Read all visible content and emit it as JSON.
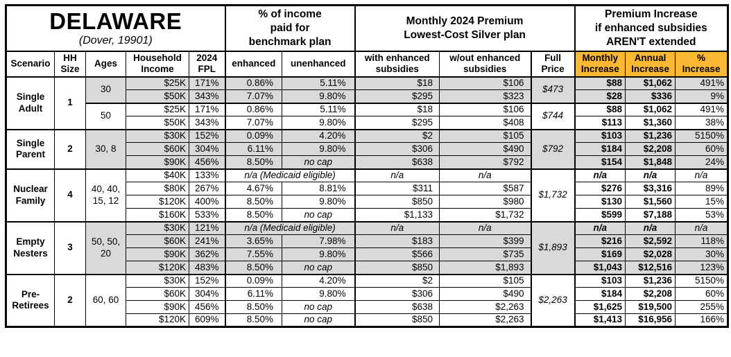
{
  "title_block": {
    "state": "DELAWARE",
    "location": "(Dover, 19901)"
  },
  "section_headers": {
    "benchmark": "% of income\npaid for\nbenchmark plan",
    "premium": "Monthly 2024 Premium\nLowest-Cost Silver plan",
    "increase": "Premium Increase\nif enhanced subsidies\nAREN'T extended"
  },
  "column_headers": [
    "Scenario",
    "HH\nSize",
    "Ages",
    "Household\nIncome",
    "2024\nFPL",
    "enhanced",
    "unenhanced",
    "with enhanced\nsubsidies",
    "w/out enhanced\nsubsidies",
    "Full\nPrice",
    "Monthly\nIncrease",
    "Annual\nIncrease",
    "%\nIncrease"
  ],
  "colors": {
    "gold": "#fbb832",
    "shade": "#d9d9d9",
    "border": "#000000"
  },
  "groups": [
    {
      "scenario": "Single Adult",
      "hh_size": "1",
      "subgroups": [
        {
          "ages": "30",
          "shaded": true,
          "full_price": "$473",
          "rows": [
            {
              "income": "$25K",
              "fpl": "171%",
              "enhanced": "0.86%",
              "unenhanced": "5.11%",
              "with_sub": "$18",
              "without_sub": "$106",
              "monthly": "$88",
              "annual": "$1,062",
              "pct": "491%"
            },
            {
              "income": "$50K",
              "fpl": "343%",
              "enhanced": "7.07%",
              "unenhanced": "9.80%",
              "with_sub": "$295",
              "without_sub": "$323",
              "monthly": "$28",
              "annual": "$336",
              "pct": "9%"
            }
          ]
        },
        {
          "ages": "50",
          "shaded": false,
          "full_price": "$744",
          "rows": [
            {
              "income": "$25K",
              "fpl": "171%",
              "enhanced": "0.86%",
              "unenhanced": "5.11%",
              "with_sub": "$18",
              "without_sub": "$106",
              "monthly": "$88",
              "annual": "$1,062",
              "pct": "491%"
            },
            {
              "income": "$50K",
              "fpl": "343%",
              "enhanced": "7.07%",
              "unenhanced": "9.80%",
              "with_sub": "$295",
              "without_sub": "$408",
              "monthly": "$113",
              "annual": "$1,360",
              "pct": "38%"
            }
          ]
        }
      ]
    },
    {
      "scenario": "Single Parent",
      "hh_size": "2",
      "subgroups": [
        {
          "ages": "30, 8",
          "shaded": true,
          "full_price": "$792",
          "rows": [
            {
              "income": "$30K",
              "fpl": "152%",
              "enhanced": "0.09%",
              "unenhanced": "4.20%",
              "with_sub": "$2",
              "without_sub": "$105",
              "monthly": "$103",
              "annual": "$1,236",
              "pct": "5150%"
            },
            {
              "income": "$60K",
              "fpl": "304%",
              "enhanced": "6.11%",
              "unenhanced": "9.80%",
              "with_sub": "$306",
              "without_sub": "$490",
              "monthly": "$184",
              "annual": "$2,208",
              "pct": "60%"
            },
            {
              "income": "$90K",
              "fpl": "456%",
              "enhanced": "8.50%",
              "unenhanced": "no cap",
              "with_sub": "$638",
              "without_sub": "$792",
              "monthly": "$154",
              "annual": "$1,848",
              "pct": "24%"
            }
          ]
        }
      ]
    },
    {
      "scenario": "Nuclear Family",
      "hh_size": "4",
      "subgroups": [
        {
          "ages": "40, 40, 15, 12",
          "shaded": false,
          "full_price": "$1,732",
          "rows": [
            {
              "income": "$40K",
              "fpl": "133%",
              "benchmark_note": "n/a (Medicaid eligible)",
              "with_sub": "n/a",
              "without_sub": "n/a",
              "monthly": "n/a",
              "annual": "n/a",
              "pct": "n/a"
            },
            {
              "income": "$80K",
              "fpl": "267%",
              "enhanced": "4.67%",
              "unenhanced": "8.81%",
              "with_sub": "$311",
              "without_sub": "$587",
              "monthly": "$276",
              "annual": "$3,316",
              "pct": "89%"
            },
            {
              "income": "$120K",
              "fpl": "400%",
              "enhanced": "8.50%",
              "unenhanced": "9.80%",
              "with_sub": "$850",
              "without_sub": "$980",
              "monthly": "$130",
              "annual": "$1,560",
              "pct": "15%"
            },
            {
              "income": "$160K",
              "fpl": "533%",
              "enhanced": "8.50%",
              "unenhanced": "no cap",
              "with_sub": "$1,133",
              "without_sub": "$1,732",
              "monthly": "$599",
              "annual": "$7,188",
              "pct": "53%"
            }
          ]
        }
      ]
    },
    {
      "scenario": "Empty Nesters",
      "hh_size": "3",
      "subgroups": [
        {
          "ages": "50, 50, 20",
          "shaded": true,
          "full_price": "$1,893",
          "rows": [
            {
              "income": "$30K",
              "fpl": "121%",
              "benchmark_note": "n/a (Medicaid eligible)",
              "with_sub": "n/a",
              "without_sub": "n/a",
              "monthly": "n/a",
              "annual": "n/a",
              "pct": "n/a"
            },
            {
              "income": "$60K",
              "fpl": "241%",
              "enhanced": "3.65%",
              "unenhanced": "7.98%",
              "with_sub": "$183",
              "without_sub": "$399",
              "monthly": "$216",
              "annual": "$2,592",
              "pct": "118%"
            },
            {
              "income": "$90K",
              "fpl": "362%",
              "enhanced": "7.55%",
              "unenhanced": "9.80%",
              "with_sub": "$566",
              "without_sub": "$735",
              "monthly": "$169",
              "annual": "$2,028",
              "pct": "30%"
            },
            {
              "income": "$120K",
              "fpl": "483%",
              "enhanced": "8.50%",
              "unenhanced": "no cap",
              "with_sub": "$850",
              "without_sub": "$1,893",
              "monthly": "$1,043",
              "annual": "$12,516",
              "pct": "123%"
            }
          ]
        }
      ]
    },
    {
      "scenario": "Pre-Retirees",
      "hh_size": "2",
      "subgroups": [
        {
          "ages": "60, 60",
          "shaded": false,
          "full_price": "$2,263",
          "rows": [
            {
              "income": "$30K",
              "fpl": "152%",
              "enhanced": "0.09%",
              "unenhanced": "4.20%",
              "with_sub": "$2",
              "without_sub": "$105",
              "monthly": "$103",
              "annual": "$1,236",
              "pct": "5150%"
            },
            {
              "income": "$60K",
              "fpl": "304%",
              "enhanced": "6.11%",
              "unenhanced": "9.80%",
              "with_sub": "$306",
              "without_sub": "$490",
              "monthly": "$184",
              "annual": "$2,208",
              "pct": "60%"
            },
            {
              "income": "$90K",
              "fpl": "456%",
              "enhanced": "8.50%",
              "unenhanced": "no cap",
              "with_sub": "$638",
              "without_sub": "$2,263",
              "monthly": "$1,625",
              "annual": "$19,500",
              "pct": "255%"
            },
            {
              "income": "$120K",
              "fpl": "609%",
              "enhanced": "8.50%",
              "unenhanced": "no cap",
              "with_sub": "$850",
              "without_sub": "$2,263",
              "monthly": "$1,413",
              "annual": "$16,956",
              "pct": "166%"
            }
          ]
        }
      ]
    }
  ]
}
